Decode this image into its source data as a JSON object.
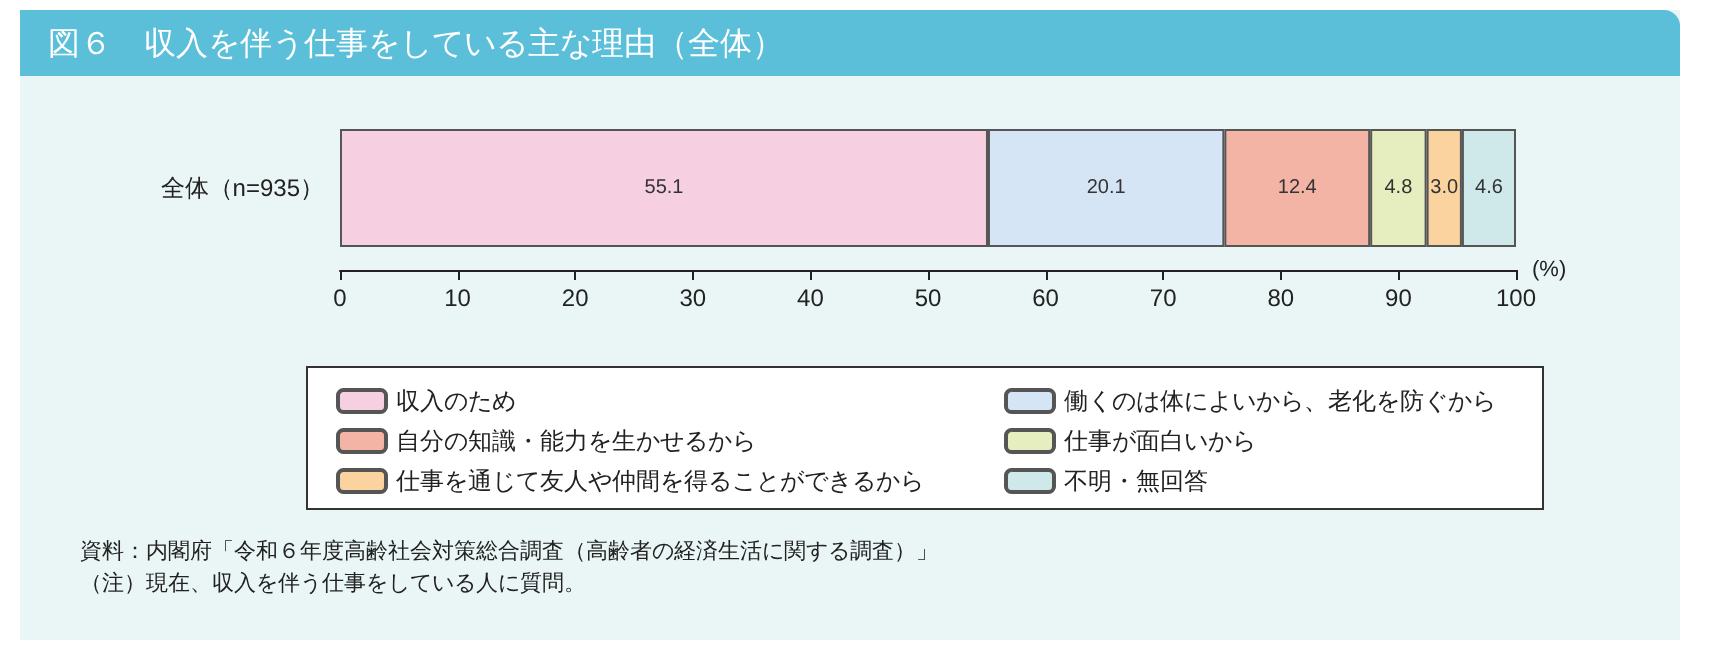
{
  "chart_data": {
    "type": "bar",
    "orientation": "horizontal",
    "stacked": true,
    "title": "図６　収入を伴う仕事をしている主な理由（全体）",
    "xlabel": "(%)",
    "categories": [
      "全体（n=935）"
    ],
    "series": [
      {
        "name": "収入のため",
        "color": "#f6d0e1",
        "values": [
          55.1
        ],
        "value_labels": [
          "55.1"
        ]
      },
      {
        "name": "働くのは体によいから、老化を防ぐから",
        "color": "#d5e5f6",
        "values": [
          20.1
        ],
        "value_labels": [
          "20.1"
        ]
      },
      {
        "name": "自分の知識・能力を生かせるから",
        "color": "#f3b4a6",
        "values": [
          12.4
        ],
        "value_labels": [
          "12.4"
        ]
      },
      {
        "name": "仕事が面白いから",
        "color": "#e6eebf",
        "values": [
          4.8
        ],
        "value_labels": [
          "4.8"
        ]
      },
      {
        "name": "仕事を通じて友人や仲間を得ることができるから",
        "color": "#fbd39e",
        "values": [
          3.0
        ],
        "value_labels": [
          "3.0"
        ]
      },
      {
        "name": "不明・無回答",
        "color": "#cfe9ea",
        "values": [
          4.6
        ],
        "value_labels": [
          "4.6"
        ]
      }
    ],
    "xlim": [
      0,
      100
    ],
    "xticks": [
      0,
      10,
      20,
      30,
      40,
      50,
      60,
      70,
      80,
      90,
      100
    ],
    "grid": false,
    "legend": "bottom",
    "annotations": [
      "資料：内閣府「令和６年度高齢社会対策総合調査（高齢者の経済生活に関する調査）」",
      "（注）現在、収入を伴う仕事をしている人に質問。"
    ]
  }
}
